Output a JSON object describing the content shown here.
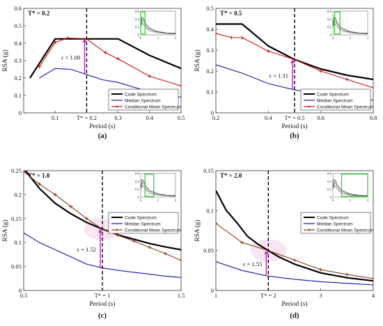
{
  "chart_data": [
    {
      "type": "line",
      "panel_label": "(a)",
      "corner_label": "T* = 0.2",
      "xlabel": "Period (s)",
      "ylabel": "RSA (g)",
      "xlim": [
        0,
        0.5
      ],
      "ylim": [
        0,
        0.6
      ],
      "x_ticks": [
        0.1,
        0.2,
        0.3,
        0.4,
        0.5
      ],
      "x_tick_labels": [
        "0.1",
        "T* = 0.2",
        "0.3",
        "0.4",
        "0.5"
      ],
      "y_ticks": [
        0,
        0.1,
        0.2,
        0.3,
        0.4,
        0.5,
        0.6
      ],
      "y_tick_labels": [
        "0",
        "0.1",
        "0.2",
        "0.3",
        "0.4",
        "0.5",
        "0.6"
      ],
      "t_star": 0.2,
      "epsilon_label": "ε = 1.00",
      "epsilon_low": 0.22,
      "epsilon_high": 0.425,
      "legend": "bottom-right",
      "series": [
        {
          "name": "Code Spectrum",
          "color": "#000000",
          "x": [
            0.02,
            0.1,
            0.2,
            0.3,
            0.4,
            0.5
          ],
          "y": [
            0.2,
            0.425,
            0.425,
            0.425,
            0.33,
            0.255
          ]
        },
        {
          "name": "Median Spectrum",
          "color": "#1010b0",
          "x": [
            0.05,
            0.1,
            0.15,
            0.2,
            0.25,
            0.3,
            0.4,
            0.5
          ],
          "y": [
            0.2,
            0.255,
            0.25,
            0.22,
            0.19,
            0.175,
            0.12,
            0.09
          ]
        },
        {
          "name": "Conditional Mean Spectrum",
          "color": "#d01010",
          "x": [
            0.05,
            0.1,
            0.14,
            0.2,
            0.26,
            0.3,
            0.4,
            0.5
          ],
          "y": [
            0.265,
            0.405,
            0.43,
            0.425,
            0.345,
            0.31,
            0.21,
            0.155
          ]
        }
      ],
      "inset": {
        "xlim": [
          0,
          4
        ],
        "ylim": [
          0,
          0.6
        ],
        "x_tick_labels": [
          "0",
          "2",
          "4"
        ],
        "y_tick_labels": [
          "0",
          "0.2",
          "0.4",
          "0.6"
        ],
        "box": [
          0,
          0.5
        ]
      }
    },
    {
      "type": "line",
      "panel_label": "(b)",
      "corner_label": "T* = 0.5",
      "xlabel": "Period (s)",
      "ylabel": "RSA (g)",
      "xlim": [
        0.2,
        0.8
      ],
      "ylim": [
        0,
        0.5
      ],
      "x_ticks": [
        0.2,
        0.4,
        0.5,
        0.6,
        0.8
      ],
      "x_tick_labels": [
        "0.2",
        "0.4",
        "T* = 0.5",
        "0.6",
        "0.8"
      ],
      "y_ticks": [
        0,
        0.1,
        0.2,
        0.3,
        0.4,
        0.5
      ],
      "y_tick_labels": [
        "0",
        "0.1",
        "0.2",
        "0.3",
        "0.4",
        "0.5"
      ],
      "t_star": 0.5,
      "epsilon_label": "ε = 1.31",
      "epsilon_low": 0.11,
      "epsilon_high": 0.255,
      "legend": "bottom-right",
      "series": [
        {
          "name": "Code Spectrum",
          "color": "#000000",
          "x": [
            0.2,
            0.3,
            0.4,
            0.5,
            0.6,
            0.7,
            0.8
          ],
          "y": [
            0.425,
            0.425,
            0.32,
            0.255,
            0.21,
            0.18,
            0.16
          ]
        },
        {
          "name": "Median Spectrum",
          "color": "#1010b0",
          "x": [
            0.2,
            0.3,
            0.4,
            0.5,
            0.6,
            0.7,
            0.8
          ],
          "y": [
            0.23,
            0.19,
            0.14,
            0.11,
            0.09,
            0.075,
            0.06
          ]
        },
        {
          "name": "Conditional Mean Spectrum",
          "color": "#d01010",
          "x": [
            0.2,
            0.26,
            0.3,
            0.4,
            0.5,
            0.6,
            0.7,
            0.8
          ],
          "y": [
            0.38,
            0.36,
            0.36,
            0.295,
            0.255,
            0.2,
            0.16,
            0.12
          ]
        }
      ],
      "inset": {
        "xlim": [
          0,
          4
        ],
        "ylim": [
          0,
          0.6
        ],
        "x_tick_labels": [
          "0",
          "2",
          "4"
        ],
        "y_tick_labels": [
          "0",
          "0.2",
          "0.4",
          "0.6"
        ],
        "box": [
          0.2,
          0.8
        ]
      }
    },
    {
      "type": "line",
      "panel_label": "(c)",
      "corner_label": "T* = 1.0",
      "xlabel": "Period (s)",
      "ylabel": "RSA (g)",
      "xlim": [
        0.5,
        1.5
      ],
      "ylim": [
        0,
        0.25
      ],
      "x_ticks": [
        0.5,
        1.0,
        1.5
      ],
      "x_tick_labels": [
        "0.5",
        "T* = 1",
        "1.5"
      ],
      "y_ticks": [
        0,
        0.05,
        0.1,
        0.15,
        0.2,
        0.25
      ],
      "y_tick_labels": [
        "0",
        "0.05",
        "0.1",
        "0.15",
        "0.2",
        "0.25"
      ],
      "t_star": 1.0,
      "epsilon_label": "ε = 1.52",
      "epsilon_low": 0.047,
      "epsilon_high": 0.128,
      "legend": "right",
      "series": [
        {
          "name": "Code Spectrum",
          "color": "#000000",
          "x": [
            0.5,
            0.6,
            0.7,
            0.8,
            0.9,
            1.0,
            1.1,
            1.2,
            1.3,
            1.4,
            1.5
          ],
          "y": [
            0.255,
            0.213,
            0.182,
            0.16,
            0.142,
            0.128,
            0.116,
            0.107,
            0.098,
            0.091,
            0.085
          ]
        },
        {
          "name": "Median Spectrum",
          "color": "#1010b0",
          "x": [
            0.5,
            0.6,
            0.7,
            0.8,
            0.9,
            1.0,
            1.1,
            1.2,
            1.3,
            1.4,
            1.5
          ],
          "y": [
            0.12,
            0.1,
            0.085,
            0.07,
            0.055,
            0.047,
            0.042,
            0.038,
            0.034,
            0.03,
            0.027
          ]
        },
        {
          "name": "Conditional Mean Spectrum",
          "color": "#8b3a1a",
          "x": [
            0.5,
            0.6,
            0.7,
            0.8,
            0.9,
            1.0,
            1.1,
            1.2,
            1.3,
            1.4,
            1.5
          ],
          "y": [
            0.248,
            0.222,
            0.2,
            0.175,
            0.15,
            0.128,
            0.115,
            0.103,
            0.09,
            0.077,
            0.063
          ]
        }
      ],
      "inset": {
        "xlim": [
          0,
          4
        ],
        "ylim": [
          0,
          0.6
        ],
        "x_tick_labels": [
          "0",
          "2",
          "4"
        ],
        "y_tick_labels": [
          "0",
          "0.2",
          "0.4",
          "0.6"
        ],
        "box": [
          0.5,
          1.5
        ]
      }
    },
    {
      "type": "line",
      "panel_label": "(d)",
      "corner_label": "T* = 2.0",
      "xlabel": "Period (s)",
      "ylabel": "RSA (g)",
      "xlim": [
        1,
        4
      ],
      "ylim": [
        0,
        0.15
      ],
      "x_ticks": [
        1,
        2,
        3,
        4
      ],
      "x_tick_labels": [
        "1",
        "T* = 2",
        "3",
        "4"
      ],
      "y_ticks": [
        0,
        0.05,
        0.1,
        0.15
      ],
      "y_tick_labels": [
        "0",
        "0.05",
        "0.1",
        "0.15"
      ],
      "t_star": 2.0,
      "epsilon_label": "ε = 1.55",
      "epsilon_low": 0.018,
      "epsilon_high": 0.05,
      "legend": "right",
      "series": [
        {
          "name": "Code Spectrum",
          "color": "#000000",
          "x": [
            1,
            1.2,
            1.4,
            1.6,
            1.8,
            2.0,
            2.2,
            2.5,
            3.0,
            3.5,
            4.0
          ],
          "y": [
            0.125,
            0.1,
            0.085,
            0.068,
            0.058,
            0.05,
            0.042,
            0.033,
            0.022,
            0.016,
            0.012
          ]
        },
        {
          "name": "Median Spectrum",
          "color": "#1010b0",
          "x": [
            1,
            1.5,
            2.0,
            2.5,
            3.0,
            3.5,
            4.0
          ],
          "y": [
            0.036,
            0.025,
            0.018,
            0.014,
            0.011,
            0.009,
            0.007
          ]
        },
        {
          "name": "Conditional Mean Spectrum",
          "color": "#8b3a1a",
          "x": [
            1,
            1.5,
            2.0,
            2.5,
            3.0,
            3.5,
            4.0
          ],
          "y": [
            0.084,
            0.06,
            0.05,
            0.038,
            0.026,
            0.02,
            0.015
          ]
        }
      ],
      "inset": {
        "xlim": [
          0,
          4
        ],
        "ylim": [
          0,
          0.6
        ],
        "x_tick_labels": [
          "0",
          "2",
          "4"
        ],
        "y_tick_labels": [
          "0",
          "0.2",
          "0.4",
          "0.6"
        ],
        "box": [
          1,
          4
        ]
      }
    }
  ]
}
